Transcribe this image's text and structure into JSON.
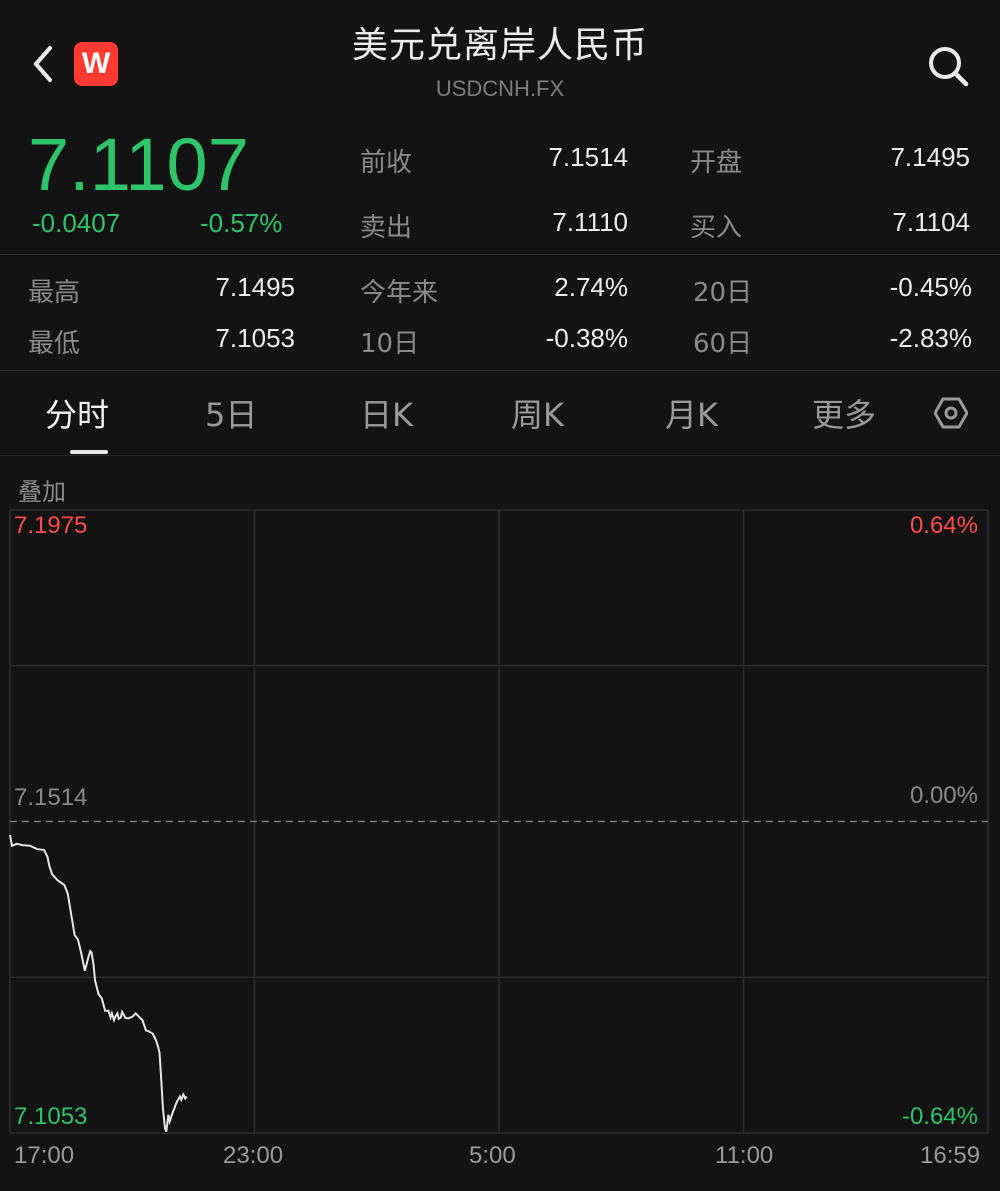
{
  "header": {
    "title": "美元兑离岸人民币",
    "symbol": "USDCNH.FX",
    "logo_text": "W",
    "back_icon": "chevron-left-icon",
    "search_icon": "search-icon"
  },
  "quote": {
    "price": "7.1107",
    "change": "-0.0407",
    "change_pct": "-0.57%",
    "color": "#2dc46a"
  },
  "stats": {
    "prev_close_label": "前收",
    "prev_close": "7.1514",
    "open_label": "开盘",
    "open": "7.1495",
    "ask_label": "卖出",
    "ask": "7.1110",
    "bid_label": "买入",
    "bid": "7.1104",
    "high_label": "最高",
    "high": "7.1495",
    "ytd_label": "今年来",
    "ytd": "2.74%",
    "d20_label": "20日",
    "d20": "-0.45%",
    "low_label": "最低",
    "low": "7.1053",
    "d10_label": "10日",
    "d10": "-0.38%",
    "d60_label": "60日",
    "d60": "-2.83%"
  },
  "tabs": [
    {
      "label": "分时",
      "active": true
    },
    {
      "label": "5日"
    },
    {
      "label": "日K"
    },
    {
      "label": "周K"
    },
    {
      "label": "月K"
    },
    {
      "label": "更多"
    }
  ],
  "settings_icon": "hexagon-settings-icon",
  "overlay_label": "叠加",
  "chart_data": {
    "type": "line",
    "y_top_label": "7.1975",
    "y_mid_label": "7.1514",
    "y_bottom_label": "7.1053",
    "pct_top_label": "0.64%",
    "pct_mid_label": "0.00%",
    "pct_bottom_label": "-0.64%",
    "ylim": [
      7.1053,
      7.1975
    ],
    "prev_close": 7.1514,
    "x_ticks": [
      "17:00",
      "23:00",
      "5:00",
      "11:00",
      "16:59"
    ],
    "session_span_minutes": 1439,
    "series": [
      {
        "minutes": [
          0,
          3,
          10,
          18,
          30,
          40,
          50,
          55,
          58,
          62,
          70,
          80,
          85,
          88,
          95,
          100,
          105,
          110,
          115,
          118,
          120,
          123,
          125,
          130,
          135,
          140,
          145,
          148,
          150,
          153,
          155,
          158,
          160,
          163,
          165,
          170,
          175,
          180,
          185,
          190,
          195,
          200,
          205,
          210,
          215,
          218,
          220,
          222,
          225,
          228,
          230,
          233,
          235,
          240,
          242,
          245,
          250,
          252,
          255,
          258,
          260
        ],
        "values": [
          7.1494,
          7.1478,
          7.1481,
          7.1479,
          7.1478,
          7.1473,
          7.1472,
          7.1462,
          7.1448,
          7.1436,
          7.1427,
          7.142,
          7.1407,
          7.1389,
          7.1346,
          7.1339,
          7.1318,
          7.1293,
          7.1312,
          7.1322,
          7.132,
          7.1301,
          7.1279,
          7.1259,
          7.1252,
          7.1234,
          7.1234,
          7.1224,
          7.123,
          7.122,
          7.1225,
          7.123,
          7.1222,
          7.1224,
          7.1232,
          7.1223,
          7.1223,
          7.1225,
          7.123,
          7.1225,
          7.122,
          7.1205,
          7.1203,
          7.12,
          7.119,
          7.118,
          7.1172,
          7.114,
          7.109,
          7.106,
          7.1055,
          7.108,
          7.107,
          7.1085,
          7.109,
          7.1098,
          7.1107,
          7.1102,
          7.111,
          7.1104,
          7.1107
        ]
      }
    ]
  }
}
